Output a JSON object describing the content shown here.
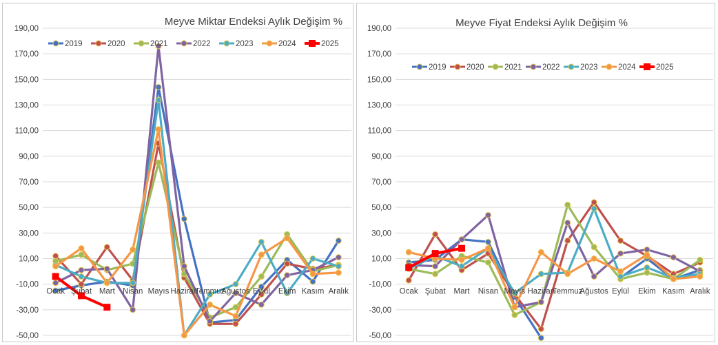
{
  "chart_data": [
    {
      "type": "line",
      "title": "Meyve Miktar Endeksi Aylık Değişim %",
      "categories": [
        "Ocak",
        "Şubat",
        "Mart",
        "Nisan",
        "Mayıs",
        "Haziran",
        "Temmuz",
        "Ağustos",
        "Eylül",
        "Ekim",
        "Kasım",
        "Aralık"
      ],
      "ylim": [
        -50,
        190
      ],
      "yticks": [
        -50,
        -30,
        -10,
        10,
        30,
        50,
        70,
        90,
        110,
        130,
        150,
        170,
        190
      ],
      "ytick_labels": [
        "-50,00",
        "-30,00",
        "-10,00",
        "10,00",
        "30,00",
        "50,00",
        "70,00",
        "90,00",
        "110,00",
        "130,00",
        "150,00",
        "170,00",
        "190,00"
      ],
      "legend_position": "top",
      "series": [
        {
          "name": "2019",
          "color": "#4472c4",
          "values": [
            -15,
            -11,
            -8,
            -11,
            144,
            41,
            -40,
            -38,
            -12,
            9,
            -8,
            24
          ]
        },
        {
          "name": "2020",
          "color": "#c0504d",
          "values": [
            12,
            -10,
            19,
            -7,
            100,
            -5,
            -41,
            -41,
            -18,
            6,
            2,
            5
          ]
        },
        {
          "name": "2021",
          "color": "#9bbb59",
          "values": [
            8,
            13,
            1,
            6,
            85,
            -2,
            -36,
            -28,
            -4,
            29,
            0,
            5
          ]
        },
        {
          "name": "2022",
          "color": "#8064a2",
          "values": [
            -9,
            1,
            2,
            -30,
            176,
            4,
            -39,
            -17,
            -26,
            -3,
            1,
            11
          ]
        },
        {
          "name": "2023",
          "color": "#4bacc6",
          "values": [
            5,
            -4,
            -9,
            -9,
            134,
            -50,
            -18,
            -10,
            23,
            -17,
            10,
            4
          ]
        },
        {
          "name": "2024",
          "color": "#f79646",
          "values": [
            4,
            18,
            -9,
            17,
            111,
            -50,
            -26,
            -35,
            13,
            26,
            -2,
            -1
          ]
        },
        {
          "name": "2025",
          "color": "#ff0000",
          "values": [
            -4,
            -19,
            -28,
            null,
            null,
            null,
            null,
            null,
            null,
            null,
            null,
            null
          ]
        }
      ]
    },
    {
      "type": "line",
      "title": "Meyve Fiyat Endeksi Aylık Değişim %",
      "categories": [
        "Ocak",
        "Şubat",
        "Mart",
        "Nisan",
        "Mayıs",
        "Haziran",
        "Temmuz",
        "Ağustos",
        "Eylül",
        "Ekim",
        "Kasım",
        "Aralık"
      ],
      "ylim": [
        -50,
        190
      ],
      "yticks": [
        -50,
        -30,
        -10,
        10,
        30,
        50,
        70,
        90,
        110,
        130,
        150,
        170,
        190
      ],
      "ytick_labels": [
        "-50,00",
        "-30,00",
        "-10,00",
        "10,00",
        "30,00",
        "50,00",
        "70,00",
        "90,00",
        "110,00",
        "130,00",
        "150,00",
        "170,00",
        "190,00"
      ],
      "legend_position": "top",
      "series": [
        {
          "name": "2019",
          "color": "#4472c4",
          "values": [
            7,
            9,
            25,
            23,
            -20,
            -52,
            null,
            null,
            -5,
            10,
            -6,
            1
          ]
        },
        {
          "name": "2020",
          "color": "#c0504d",
          "values": [
            -7,
            29,
            1,
            14,
            -18,
            -45,
            24,
            54,
            24,
            12,
            -2,
            7
          ]
        },
        {
          "name": "2021",
          "color": "#9bbb59",
          "values": [
            2,
            -2,
            12,
            7,
            -34,
            -24,
            52,
            19,
            -6,
            -1,
            -6,
            9
          ]
        },
        {
          "name": "2022",
          "color": "#8064a2",
          "values": [
            5,
            4,
            25,
            44,
            -28,
            -24,
            38,
            -4,
            14,
            17,
            11,
            0
          ]
        },
        {
          "name": "2023",
          "color": "#4bacc6",
          "values": [
            2,
            12,
            4,
            18,
            -17,
            -2,
            -1,
            49,
            -4,
            3,
            -5,
            -2
          ]
        },
        {
          "name": "2024",
          "color": "#f79646",
          "values": [
            15,
            10,
            9,
            18,
            -28,
            15,
            -2,
            10,
            0,
            13,
            -6,
            -4
          ]
        },
        {
          "name": "2025",
          "color": "#ff0000",
          "values": [
            3,
            14,
            18,
            null,
            null,
            null,
            null,
            null,
            null,
            null,
            null,
            null
          ]
        }
      ]
    }
  ]
}
